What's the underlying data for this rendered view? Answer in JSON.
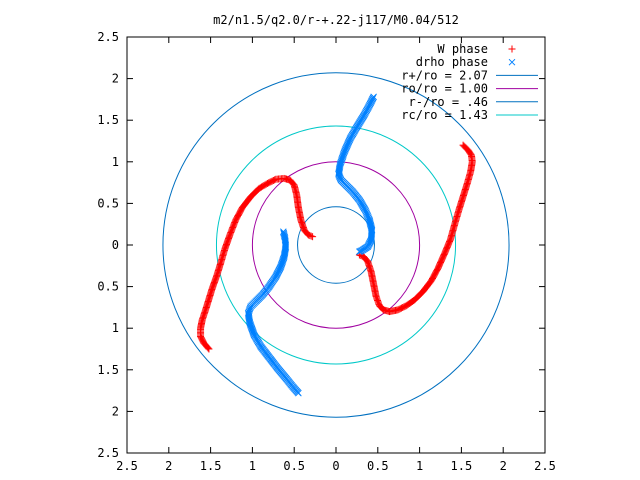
{
  "chart_data": {
    "type": "scatter",
    "title": "m2/n1.5/q2.0/r-+.22-j117/M0.04/512",
    "xlabel": "",
    "ylabel": "",
    "xlim": [
      -2.5,
      2.5
    ],
    "ylim": [
      -2.5,
      2.5
    ],
    "x_tick_values": [
      -2.5,
      -2,
      -1.5,
      -1,
      -0.5,
      0,
      0.5,
      1,
      1.5,
      2,
      2.5
    ],
    "x_tick_labels": [
      "2.5",
      "2",
      "1.5",
      "1",
      "0.5",
      "0",
      "0.5",
      "1",
      "1.5",
      "2",
      "2.5"
    ],
    "y_tick_values": [
      2.5,
      2,
      1.5,
      1,
      0.5,
      0,
      -0.5,
      -1,
      -1.5,
      -2,
      -2.5
    ],
    "y_tick_labels": [
      "2.5",
      "2",
      "1.5",
      "1",
      "0.5",
      "0",
      "0.5",
      "1",
      "1.5",
      "2",
      "2.5"
    ],
    "grid": false,
    "legend_position": "top-right",
    "circles": [
      {
        "name": "r+/ro = 2.07",
        "radius": 2.07,
        "color": "#0070c0"
      },
      {
        "name": "ro/ro = 1.00",
        "radius": 1.0,
        "color": "#a000a0"
      },
      {
        "name": "r-/ro = .46",
        "radius": 0.46,
        "color": "#0070c0"
      },
      {
        "name": "rc/ro = 1.43",
        "radius": 1.43,
        "color": "#00c8c8"
      }
    ],
    "series": [
      {
        "name": "W phase",
        "marker": "+",
        "color": "#ff0000",
        "segments": [
          [
            [
              -0.28,
              0.1
            ],
            [
              -0.33,
              0.12
            ],
            [
              -0.38,
              0.18
            ],
            [
              -0.42,
              0.3
            ],
            [
              -0.45,
              0.45
            ],
            [
              -0.47,
              0.6
            ],
            [
              -0.5,
              0.72
            ],
            [
              -0.55,
              0.78
            ],
            [
              -0.62,
              0.8
            ],
            [
              -0.72,
              0.79
            ],
            [
              -0.82,
              0.74
            ],
            [
              -0.92,
              0.68
            ],
            [
              -1.02,
              0.58
            ],
            [
              -1.12,
              0.45
            ],
            [
              -1.2,
              0.3
            ],
            [
              -1.27,
              0.12
            ],
            [
              -1.33,
              -0.05
            ],
            [
              -1.38,
              -0.22
            ],
            [
              -1.43,
              -0.38
            ],
            [
              -1.48,
              -0.52
            ],
            [
              -1.52,
              -0.65
            ],
            [
              -1.56,
              -0.78
            ],
            [
              -1.6,
              -0.9
            ],
            [
              -1.62,
              -1.0
            ],
            [
              -1.62,
              -1.1
            ],
            [
              -1.58,
              -1.18
            ],
            [
              -1.52,
              -1.25
            ]
          ],
          [
            [
              0.28,
              -0.12
            ],
            [
              0.33,
              -0.14
            ],
            [
              0.38,
              -0.2
            ],
            [
              0.42,
              -0.32
            ],
            [
              0.45,
              -0.47
            ],
            [
              0.48,
              -0.62
            ],
            [
              0.52,
              -0.73
            ],
            [
              0.57,
              -0.78
            ],
            [
              0.64,
              -0.8
            ],
            [
              0.74,
              -0.78
            ],
            [
              0.84,
              -0.73
            ],
            [
              0.94,
              -0.66
            ],
            [
              1.04,
              -0.56
            ],
            [
              1.14,
              -0.43
            ],
            [
              1.22,
              -0.28
            ],
            [
              1.3,
              -0.1
            ],
            [
              1.37,
              0.07
            ],
            [
              1.42,
              0.25
            ],
            [
              1.47,
              0.42
            ],
            [
              1.52,
              0.58
            ],
            [
              1.57,
              0.74
            ],
            [
              1.61,
              0.88
            ],
            [
              1.63,
              1.0
            ],
            [
              1.62,
              1.08
            ],
            [
              1.58,
              1.14
            ],
            [
              1.52,
              1.2
            ]
          ]
        ]
      },
      {
        "name": "drho phase",
        "marker": "x",
        "color": "#0080ff",
        "segments": [
          [
            [
              0.45,
              1.78
            ],
            [
              0.4,
              1.68
            ],
            [
              0.33,
              1.55
            ],
            [
              0.25,
              1.42
            ],
            [
              0.17,
              1.28
            ],
            [
              0.1,
              1.12
            ],
            [
              0.05,
              0.97
            ],
            [
              0.03,
              0.85
            ],
            [
              0.06,
              0.78
            ],
            [
              0.12,
              0.72
            ],
            [
              0.2,
              0.64
            ],
            [
              0.28,
              0.54
            ],
            [
              0.35,
              0.42
            ],
            [
              0.4,
              0.3
            ],
            [
              0.43,
              0.18
            ],
            [
              0.42,
              0.06
            ],
            [
              0.38,
              -0.02
            ],
            [
              0.32,
              -0.06
            ],
            [
              0.28,
              -0.08
            ]
          ],
          [
            [
              -0.45,
              -1.78
            ],
            [
              -0.52,
              -1.7
            ],
            [
              -0.6,
              -1.6
            ],
            [
              -0.7,
              -1.48
            ],
            [
              -0.8,
              -1.35
            ],
            [
              -0.9,
              -1.22
            ],
            [
              -0.98,
              -1.08
            ],
            [
              -1.03,
              -0.94
            ],
            [
              -1.05,
              -0.82
            ],
            [
              -1.02,
              -0.74
            ],
            [
              -0.96,
              -0.68
            ],
            [
              -0.88,
              -0.6
            ],
            [
              -0.8,
              -0.5
            ],
            [
              -0.72,
              -0.38
            ],
            [
              -0.66,
              -0.26
            ],
            [
              -0.62,
              -0.14
            ],
            [
              -0.6,
              -0.02
            ],
            [
              -0.61,
              0.08
            ],
            [
              -0.63,
              0.16
            ]
          ]
        ]
      }
    ]
  }
}
